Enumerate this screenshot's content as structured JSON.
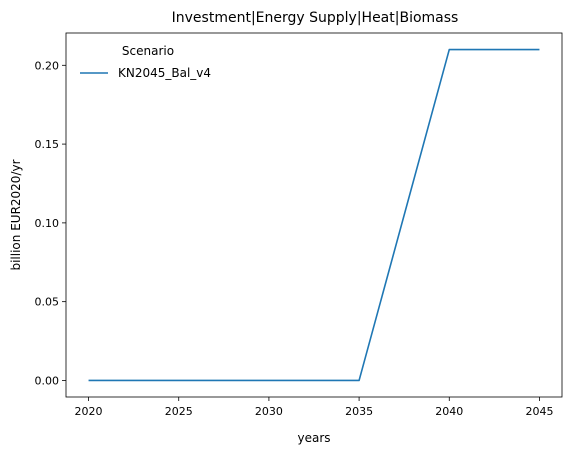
{
  "chart_data": {
    "type": "line",
    "title": "Investment|Energy Supply|Heat|Biomass",
    "xlabel": "years",
    "ylabel": "billion EUR2020/yr",
    "xlim": [
      2018.75,
      2046.25
    ],
    "ylim": [
      -0.0105,
      0.2205
    ],
    "xticks": [
      2020,
      2025,
      2030,
      2035,
      2040,
      2045
    ],
    "yticks": [
      0.0,
      0.05,
      0.1,
      0.15,
      0.2
    ],
    "ytick_labels": [
      "0.00",
      "0.05",
      "0.10",
      "0.15",
      "0.20"
    ],
    "grid": false,
    "legend": {
      "title": "Scenario",
      "placement": "top-left"
    },
    "series": [
      {
        "name": "KN2045_Bal_v4",
        "color": "#1f77b4",
        "x": [
          2020,
          2025,
          2030,
          2035,
          2040,
          2045
        ],
        "values": [
          0.0,
          0.0,
          0.0,
          0.0,
          0.21,
          0.21
        ]
      }
    ]
  }
}
